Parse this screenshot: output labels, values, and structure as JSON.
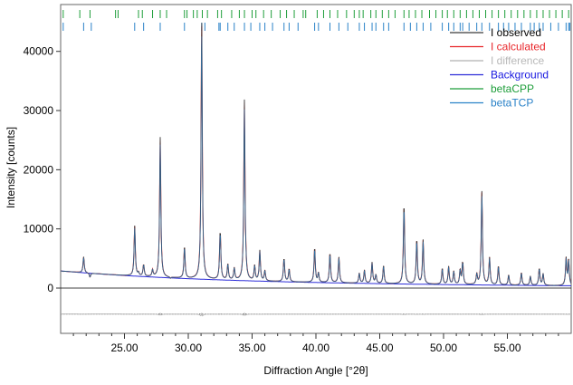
{
  "chart_data": {
    "type": "line",
    "xlabel": "Diffraction Angle [°2θ]",
    "ylabel": "Intensity [counts]",
    "xlim": [
      20,
      60
    ],
    "ylim": [
      -7500,
      46000
    ],
    "x_ticks": [
      25,
      30,
      35,
      40,
      45,
      50,
      55
    ],
    "x_tick_labels": [
      "25.00",
      "30.00",
      "35.00",
      "40.00",
      "45.00",
      "50.00",
      "55.00"
    ],
    "y_ticks": [
      0,
      10000,
      20000,
      30000,
      40000
    ],
    "y_tick_labels": [
      "0",
      "10000",
      "20000",
      "30000",
      "40000"
    ],
    "grid": false,
    "legend_position": "top-right",
    "legend": [
      {
        "name": "I observed",
        "line_color": "#3a3a3a",
        "text_color": "#000000"
      },
      {
        "name": "I calculated",
        "line_color": "#e8262a",
        "text_color": "#e8262a"
      },
      {
        "name": "I difference",
        "line_color": "#b0b0b0",
        "text_color": "#b8b8b8"
      },
      {
        "name": "Background",
        "line_color": "#2d2dd8",
        "text_color": "#1a1ae0"
      },
      {
        "name": "betaCPP",
        "line_color": "#1e9e3a",
        "text_color": "#1e9e3a"
      },
      {
        "name": "betaTCP",
        "line_color": "#2a82c8",
        "text_color": "#2a82c8"
      }
    ],
    "background": {
      "start": 2200,
      "mid": 1000,
      "end": 300
    },
    "peaks": [
      {
        "x": 20.2,
        "y": 2800
      },
      {
        "x": 21.8,
        "y": 5300
      },
      {
        "x": 22.3,
        "y": 1800
      },
      {
        "x": 25.8,
        "y": 10500
      },
      {
        "x": 26.1,
        "y": 2500
      },
      {
        "x": 26.5,
        "y": 3900
      },
      {
        "x": 27.2,
        "y": 3000
      },
      {
        "x": 27.8,
        "y": 25500
      },
      {
        "x": 28.6,
        "y": 1500
      },
      {
        "x": 29.7,
        "y": 7000
      },
      {
        "x": 31.05,
        "y": 45500
      },
      {
        "x": 32.5,
        "y": 9600
      },
      {
        "x": 33.1,
        "y": 4000
      },
      {
        "x": 33.6,
        "y": 3300
      },
      {
        "x": 34.4,
        "y": 31800
      },
      {
        "x": 35.2,
        "y": 3700
      },
      {
        "x": 35.6,
        "y": 6300
      },
      {
        "x": 36.0,
        "y": 2900
      },
      {
        "x": 37.5,
        "y": 5000
      },
      {
        "x": 37.9,
        "y": 3200
      },
      {
        "x": 39.9,
        "y": 6800
      },
      {
        "x": 40.2,
        "y": 2500
      },
      {
        "x": 41.1,
        "y": 5900
      },
      {
        "x": 41.8,
        "y": 5200
      },
      {
        "x": 43.4,
        "y": 2500
      },
      {
        "x": 43.8,
        "y": 3000
      },
      {
        "x": 44.4,
        "y": 4300
      },
      {
        "x": 44.7,
        "y": 2200
      },
      {
        "x": 45.3,
        "y": 3800
      },
      {
        "x": 46.9,
        "y": 14200
      },
      {
        "x": 47.9,
        "y": 8200
      },
      {
        "x": 48.4,
        "y": 8100
      },
      {
        "x": 49.9,
        "y": 3300
      },
      {
        "x": 50.4,
        "y": 3600
      },
      {
        "x": 50.8,
        "y": 2800
      },
      {
        "x": 51.3,
        "y": 3000
      },
      {
        "x": 51.5,
        "y": 4300
      },
      {
        "x": 52.6,
        "y": 2300
      },
      {
        "x": 53.0,
        "y": 16300
      },
      {
        "x": 53.6,
        "y": 5100
      },
      {
        "x": 54.3,
        "y": 3700
      },
      {
        "x": 55.1,
        "y": 2200
      },
      {
        "x": 56.1,
        "y": 2600
      },
      {
        "x": 56.8,
        "y": 2000
      },
      {
        "x": 57.5,
        "y": 3300
      },
      {
        "x": 57.8,
        "y": 2400
      },
      {
        "x": 59.6,
        "y": 5000
      },
      {
        "x": 59.8,
        "y": 4600
      }
    ],
    "difference_baseline": -4400,
    "tick_marks": {
      "betaCPP": [
        20.2,
        21.5,
        22.3,
        24.3,
        24.5,
        26.1,
        26.4,
        27.2,
        27.8,
        28.3,
        29.7,
        29.9,
        30.4,
        30.7,
        31.1,
        31.5,
        32.3,
        32.6,
        33.4,
        34.0,
        34.4,
        35.0,
        35.3,
        35.9,
        36.5,
        37.2,
        37.7,
        38.3,
        39.0,
        39.2,
        40.1,
        40.6,
        41.1,
        41.7,
        42.4,
        43.0,
        43.4,
        43.7,
        44.3,
        44.7,
        45.2,
        45.7,
        46.2,
        46.9,
        47.3,
        47.8,
        48.3,
        48.9,
        49.4,
        49.9,
        50.3,
        50.8,
        51.3,
        51.8,
        52.3,
        52.8,
        53.3,
        53.8,
        54.3,
        54.8,
        55.3,
        55.8,
        56.3,
        56.8,
        57.3,
        57.8,
        58.3,
        58.8,
        59.3,
        59.8
      ],
      "betaTCP": [
        20.2,
        21.8,
        22.4,
        25.8,
        26.5,
        27.8,
        29.7,
        31.05,
        31.3,
        32.4,
        32.5,
        33.1,
        33.6,
        34.4,
        34.9,
        35.6,
        36.0,
        36.6,
        37.5,
        37.9,
        38.6,
        39.9,
        40.2,
        41.1,
        41.8,
        42.5,
        43.4,
        43.8,
        44.4,
        44.7,
        45.3,
        45.7,
        46.9,
        47.4,
        47.9,
        48.4,
        49.0,
        49.9,
        50.4,
        50.8,
        51.3,
        51.5,
        52.0,
        52.6,
        53.0,
        53.6,
        54.3,
        54.7,
        55.1,
        55.6,
        56.1,
        56.8,
        57.1,
        57.5,
        57.8,
        58.4,
        59.0,
        59.6,
        59.8,
        59.9
      ]
    }
  }
}
